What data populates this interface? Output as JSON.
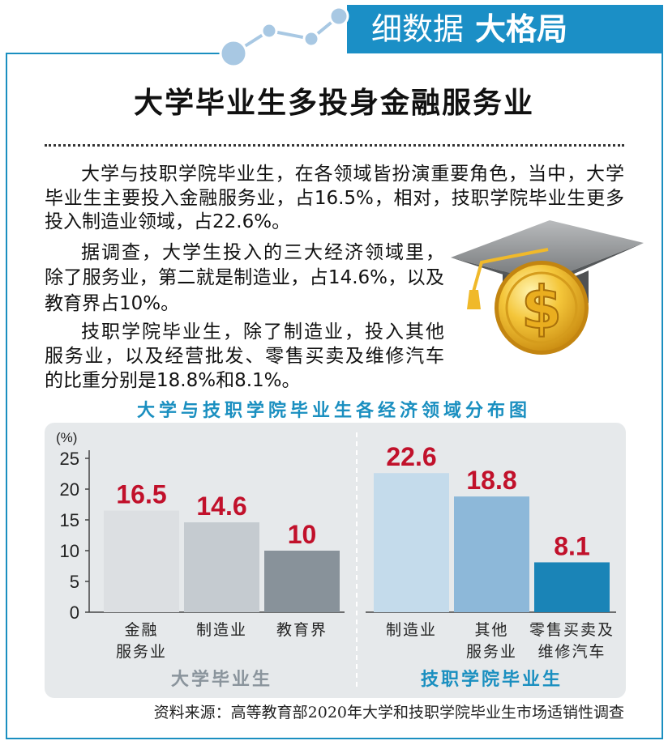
{
  "banner": {
    "title_light": "细数据",
    "title_bold": "大格局"
  },
  "headline": "大学毕业生多投身金融服务业",
  "body": {
    "paragraphs": [
      {
        "lines": [
          "大学与技职学院毕业生，在各领域皆扮演重要角色，当中，大学",
          "毕业生主要投入金融服务业，占16.5%，相对，技职学院毕业生更多",
          "投入制造业领域，占22.6%。"
        ]
      },
      {
        "lines": [
          "据调查，大学生投入的三大经济领域里，",
          "除了服务业，第二就是制造业，占14.6%，以及",
          "教育界占10%。"
        ]
      },
      {
        "lines": [
          "技职学院毕业生，除了制造业，投入其他",
          "服务业，以及经营批发、零售买卖及维修汽车",
          "的比重分别是18.8%和8.1%。"
        ]
      }
    ]
  },
  "illustration": {
    "icon": "graduation-cap-dollar-coin-icon",
    "coin_symbol": "$"
  },
  "decoration": {
    "icon": "line-chart-icon"
  },
  "chart_data": {
    "type": "bar",
    "title": "大学与技职学院毕业生各经济领域分布图",
    "ylabel": "(%)",
    "xlabel": "",
    "ylim": [
      0,
      25
    ],
    "yticks": [
      0,
      5,
      10,
      15,
      20,
      25
    ],
    "grid": false,
    "legend": "none",
    "value_label_color": "#c1112b",
    "groups": [
      {
        "name": "大学毕业生",
        "label_color": "#8a949c",
        "categories": [
          [
            "金融",
            "服务业"
          ],
          [
            "制造业"
          ],
          [
            "教育界"
          ]
        ],
        "values": [
          16.5,
          14.6,
          10
        ],
        "colors": [
          "#dcdfe2",
          "#c5cbd0",
          "#88929a"
        ]
      },
      {
        "name": "技职学院毕业生",
        "label_color": "#1a8fc0",
        "categories": [
          [
            "制造业"
          ],
          [
            "其他",
            "服务业"
          ],
          [
            "零售买卖及",
            "维修汽车"
          ]
        ],
        "values": [
          22.6,
          18.8,
          8.1
        ],
        "colors": [
          "#c4dbeb",
          "#8db8d9",
          "#1a84b7"
        ]
      }
    ]
  },
  "source": "资料来源：高等教育部2020年大学和技职学院毕业生市场适销性调查",
  "colors": {
    "accent": "#1a8fc0",
    "banner": "#1b8fc6",
    "text": "#111111"
  }
}
